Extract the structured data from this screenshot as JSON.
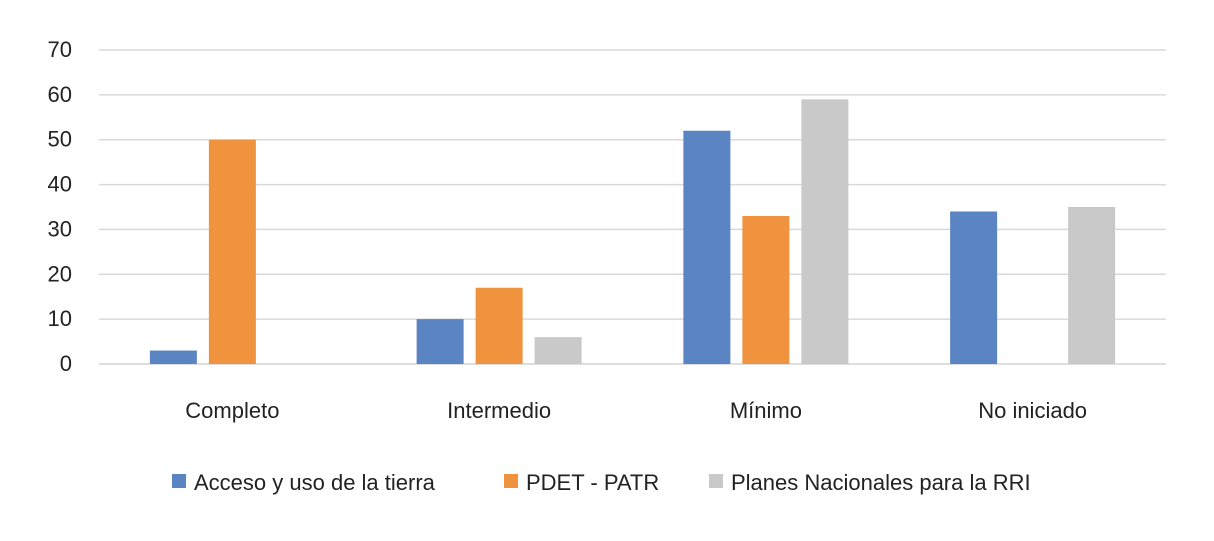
{
  "chart_data": {
    "type": "bar",
    "title": "",
    "xlabel": "",
    "ylabel": "",
    "categories": [
      "Completo",
      "Intermedio",
      "Mínimo",
      "No iniciado"
    ],
    "ylim": [
      0,
      70
    ],
    "yticks": [
      0,
      10,
      20,
      30,
      40,
      50,
      60,
      70
    ],
    "grid": true,
    "legend_position": "bottom",
    "series": [
      {
        "name": "Acceso y uso de la tierra",
        "color": "#5B85C2",
        "values": [
          3,
          10,
          52,
          34
        ]
      },
      {
        "name": "PDET - PATR",
        "color": "#F0933F",
        "values": [
          50,
          17,
          33,
          0
        ]
      },
      {
        "name": "Planes Nacionales para la RRI",
        "color": "#C9C9C9",
        "values": [
          0,
          6,
          59,
          35
        ]
      }
    ]
  }
}
